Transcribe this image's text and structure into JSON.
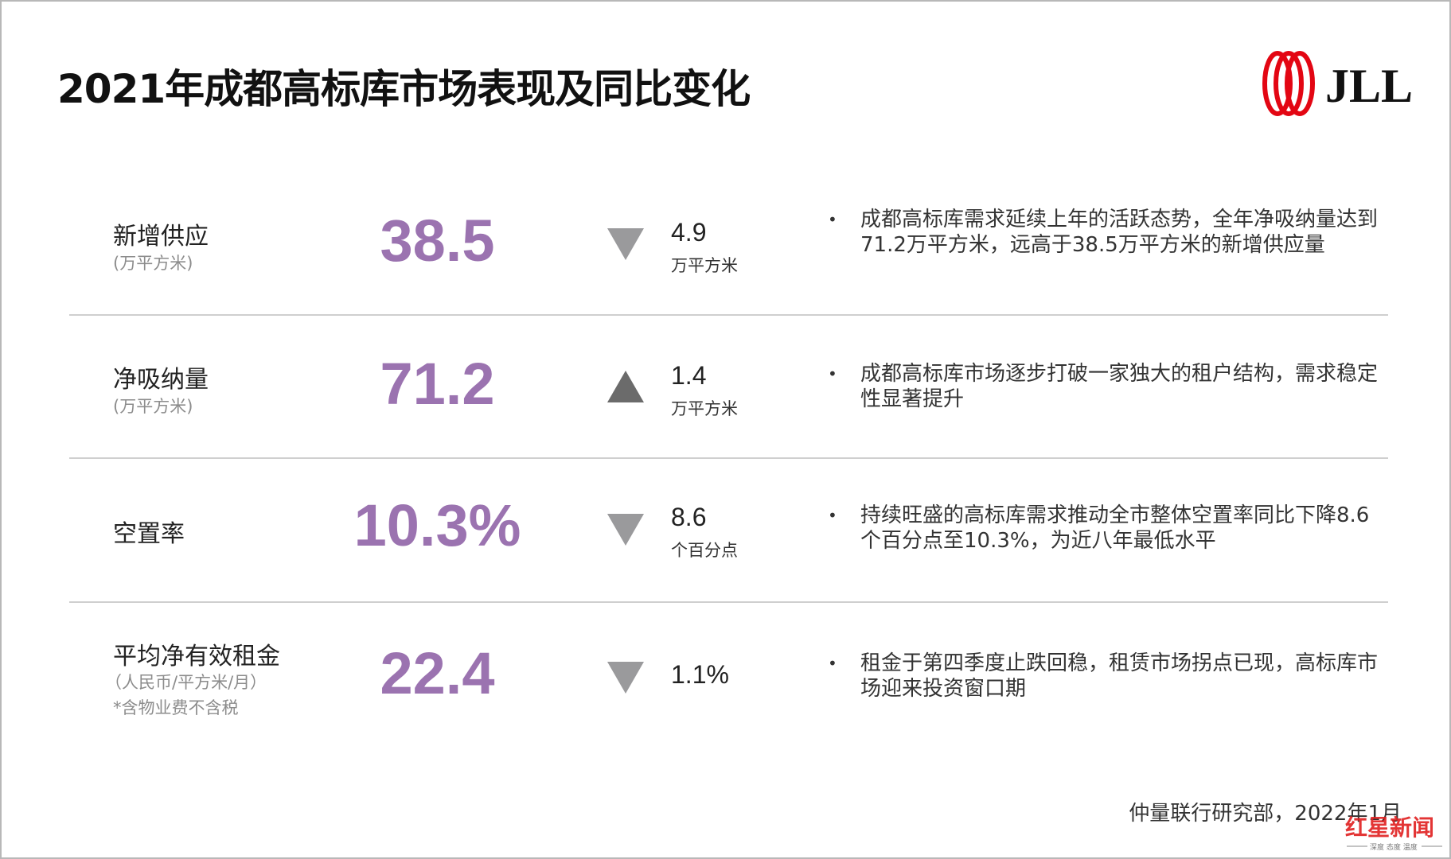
{
  "title": "2021年成都高标库市场表现及同比变化",
  "logo_text": "JLL",
  "accent_color": "#9b73b0",
  "rows": [
    {
      "label": "新增供应",
      "unit": "(万平方米)",
      "value": "38.5",
      "direction": "down",
      "change": "4.9",
      "change_unit": "万平方米",
      "desc": "成都高标库需求延续上年的活跃态势，全年净吸纳量达到71.2万平方米，远高于38.5万平方米的新增供应量"
    },
    {
      "label": "净吸纳量",
      "unit": "(万平方米)",
      "value": "71.2",
      "direction": "up",
      "change": "1.4",
      "change_unit": "万平方米",
      "desc": "成都高标库市场逐步打破一家独大的租户结构，需求稳定性显著提升"
    },
    {
      "label": "空置率",
      "value": "10.3%",
      "direction": "down",
      "change": "8.6",
      "change_unit": "个百分点",
      "desc": "持续旺盛的高标库需求推动全市整体空置率同比下降8.6个百分点至10.3%，为近八年最低水平"
    },
    {
      "label": "平均净有效租金",
      "unit": "（人民币/平方米/月）",
      "note": "*含物业费不含税",
      "value": "22.4",
      "direction": "down",
      "change": "1.1%",
      "desc": "租金于第四季度止跌回稳，租赁市场拐点已现，高标库市场迎来投资窗口期"
    }
  ],
  "bullet": "•",
  "footer": "仲量联行研究部，2022年1月",
  "watermark": {
    "text": "红星新闻",
    "tagline": "深度 态度 温度"
  }
}
